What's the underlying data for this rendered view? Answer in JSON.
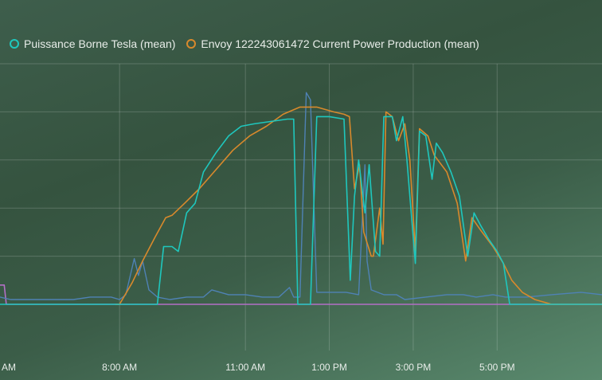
{
  "chart_data": {
    "type": "line",
    "title": "",
    "xlabel": "",
    "ylabel": "",
    "grid": true,
    "legend_position": "top-left",
    "x_ticks": [
      "AM",
      "8:00 AM",
      "11:00 AM",
      "1:00 PM",
      "3:00 PM",
      "5:00 PM"
    ],
    "x_tick_values": [
      5.25,
      8.0,
      11.0,
      13.0,
      15.0,
      17.0
    ],
    "xlim": [
      5.15,
      19.5
    ],
    "ylim": [
      0,
      1.0
    ],
    "y_gridlines": [
      0,
      0.2,
      0.4,
      0.6,
      0.8,
      1.0
    ],
    "x_gridlines": [
      8.0,
      11.0,
      13.0,
      15.0,
      17.0
    ],
    "series": [
      {
        "name": "Puissance Borne Tesla (mean)",
        "color": "#1fc7bd",
        "legend": true,
        "points": [
          [
            5.15,
            0.0
          ],
          [
            7.9,
            0.0
          ],
          [
            8.9,
            0.0
          ],
          [
            9.05,
            0.24
          ],
          [
            9.25,
            0.24
          ],
          [
            9.4,
            0.22
          ],
          [
            9.6,
            0.38
          ],
          [
            9.8,
            0.42
          ],
          [
            10.0,
            0.55
          ],
          [
            10.3,
            0.63
          ],
          [
            10.6,
            0.7
          ],
          [
            10.9,
            0.74
          ],
          [
            11.2,
            0.75
          ],
          [
            11.6,
            0.76
          ],
          [
            12.0,
            0.77
          ],
          [
            12.15,
            0.77
          ],
          [
            12.25,
            0.0
          ],
          [
            12.55,
            0.0
          ],
          [
            12.7,
            0.78
          ],
          [
            13.0,
            0.78
          ],
          [
            13.35,
            0.77
          ],
          [
            13.5,
            0.1
          ],
          [
            13.6,
            0.45
          ],
          [
            13.7,
            0.6
          ],
          [
            13.85,
            0.38
          ],
          [
            13.95,
            0.58
          ],
          [
            14.1,
            0.22
          ],
          [
            14.2,
            0.2
          ],
          [
            14.3,
            0.78
          ],
          [
            14.5,
            0.78
          ],
          [
            14.6,
            0.68
          ],
          [
            14.75,
            0.78
          ],
          [
            14.85,
            0.6
          ],
          [
            15.05,
            0.17
          ],
          [
            15.15,
            0.72
          ],
          [
            15.3,
            0.7
          ],
          [
            15.45,
            0.52
          ],
          [
            15.55,
            0.67
          ],
          [
            15.7,
            0.63
          ],
          [
            15.9,
            0.55
          ],
          [
            16.1,
            0.45
          ],
          [
            16.3,
            0.2
          ],
          [
            16.45,
            0.38
          ],
          [
            16.6,
            0.33
          ],
          [
            16.8,
            0.27
          ],
          [
            17.0,
            0.22
          ],
          [
            17.15,
            0.17
          ],
          [
            17.3,
            0.0
          ],
          [
            19.5,
            0.0
          ]
        ]
      },
      {
        "name": "Envoy 122243061472 Current Power Production (mean)",
        "color": "#d8892c",
        "legend": true,
        "points": [
          [
            7.9,
            0.0
          ],
          [
            8.0,
            0.0
          ],
          [
            8.3,
            0.09
          ],
          [
            8.55,
            0.18
          ],
          [
            8.85,
            0.28
          ],
          [
            9.1,
            0.36
          ],
          [
            9.25,
            0.37
          ],
          [
            9.55,
            0.42
          ],
          [
            9.9,
            0.48
          ],
          [
            10.3,
            0.56
          ],
          [
            10.7,
            0.64
          ],
          [
            11.1,
            0.7
          ],
          [
            11.5,
            0.74
          ],
          [
            11.9,
            0.79
          ],
          [
            12.3,
            0.82
          ],
          [
            12.7,
            0.82
          ],
          [
            13.1,
            0.8
          ],
          [
            13.35,
            0.79
          ],
          [
            13.48,
            0.78
          ],
          [
            13.6,
            0.48
          ],
          [
            13.72,
            0.58
          ],
          [
            13.82,
            0.3
          ],
          [
            14.0,
            0.2
          ],
          [
            14.05,
            0.2
          ],
          [
            14.2,
            0.4
          ],
          [
            14.28,
            0.25
          ],
          [
            14.35,
            0.8
          ],
          [
            14.5,
            0.78
          ],
          [
            14.65,
            0.68
          ],
          [
            14.8,
            0.75
          ],
          [
            14.92,
            0.6
          ],
          [
            15.05,
            0.22
          ],
          [
            15.15,
            0.73
          ],
          [
            15.35,
            0.7
          ],
          [
            15.5,
            0.62
          ],
          [
            15.8,
            0.55
          ],
          [
            16.05,
            0.42
          ],
          [
            16.25,
            0.18
          ],
          [
            16.4,
            0.36
          ],
          [
            16.6,
            0.31
          ],
          [
            16.9,
            0.24
          ],
          [
            17.15,
            0.17
          ],
          [
            17.35,
            0.1
          ],
          [
            17.6,
            0.05
          ],
          [
            17.9,
            0.02
          ],
          [
            18.3,
            0.0
          ],
          [
            19.5,
            0.0
          ]
        ]
      },
      {
        "name": "",
        "color": "#4f82b5",
        "legend": false,
        "points": [
          [
            5.15,
            0.03
          ],
          [
            5.4,
            0.02
          ],
          [
            5.8,
            0.02
          ],
          [
            6.3,
            0.02
          ],
          [
            6.9,
            0.02
          ],
          [
            7.3,
            0.03
          ],
          [
            7.8,
            0.03
          ],
          [
            8.0,
            0.02
          ],
          [
            8.15,
            0.04
          ],
          [
            8.35,
            0.19
          ],
          [
            8.45,
            0.12
          ],
          [
            8.55,
            0.18
          ],
          [
            8.7,
            0.06
          ],
          [
            8.9,
            0.03
          ],
          [
            9.2,
            0.02
          ],
          [
            9.6,
            0.03
          ],
          [
            10.0,
            0.03
          ],
          [
            10.2,
            0.06
          ],
          [
            10.6,
            0.04
          ],
          [
            11.0,
            0.04
          ],
          [
            11.4,
            0.03
          ],
          [
            11.8,
            0.03
          ],
          [
            12.05,
            0.07
          ],
          [
            12.15,
            0.03
          ],
          [
            12.3,
            0.03
          ],
          [
            12.45,
            0.88
          ],
          [
            12.55,
            0.85
          ],
          [
            12.7,
            0.05
          ],
          [
            13.0,
            0.05
          ],
          [
            13.4,
            0.05
          ],
          [
            13.7,
            0.04
          ],
          [
            13.85,
            0.58
          ],
          [
            13.9,
            0.18
          ],
          [
            14.0,
            0.06
          ],
          [
            14.3,
            0.04
          ],
          [
            14.6,
            0.04
          ],
          [
            14.8,
            0.02
          ],
          [
            15.3,
            0.03
          ],
          [
            15.8,
            0.04
          ],
          [
            16.2,
            0.04
          ],
          [
            16.5,
            0.03
          ],
          [
            16.9,
            0.04
          ],
          [
            17.2,
            0.03
          ],
          [
            17.7,
            0.03
          ],
          [
            18.3,
            0.04
          ],
          [
            19.0,
            0.05
          ],
          [
            19.5,
            0.04
          ]
        ]
      },
      {
        "name": "",
        "color": "#b36fc6",
        "legend": false,
        "points": [
          [
            5.15,
            0.08
          ],
          [
            5.25,
            0.08
          ],
          [
            5.3,
            0.0
          ],
          [
            7.9,
            0.0
          ],
          [
            12.4,
            0.0
          ],
          [
            14.0,
            0.0
          ],
          [
            19.5,
            0.0
          ]
        ]
      }
    ]
  }
}
